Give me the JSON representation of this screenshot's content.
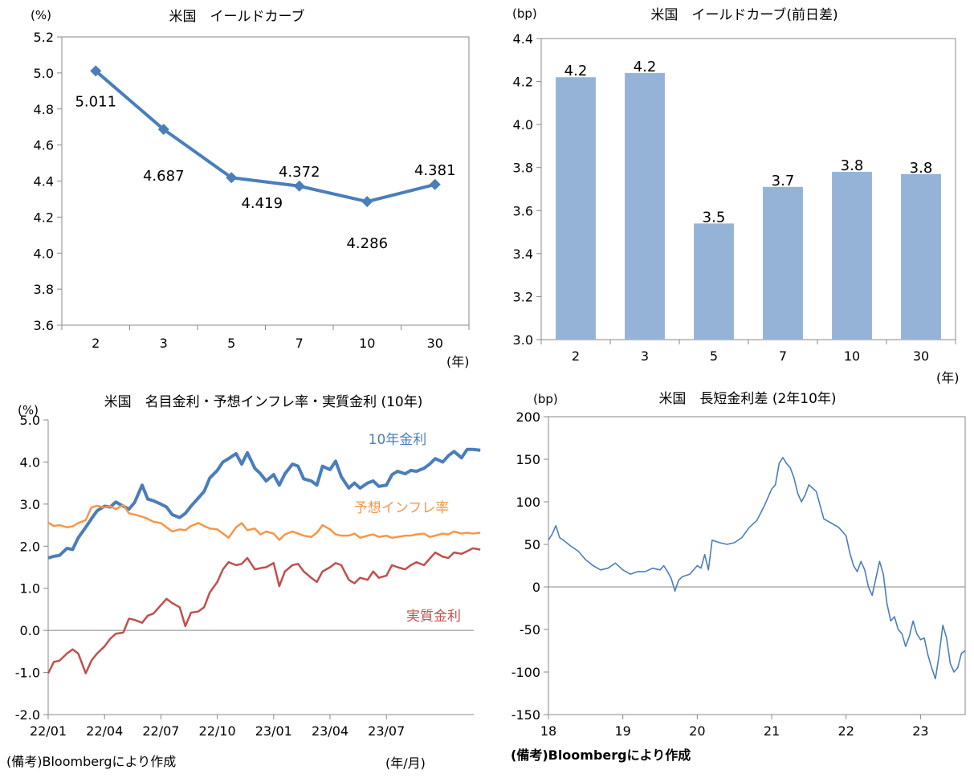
{
  "chart_data": [
    {
      "type": "line",
      "title": "米国　イールドカーブ",
      "ylabel": "(%)",
      "xunit": "(年)",
      "categories": [
        "2",
        "3",
        "5",
        "7",
        "10",
        "30"
      ],
      "values": [
        5.011,
        4.687,
        4.419,
        4.372,
        4.286,
        4.381
      ],
      "data_labels": [
        "5.011",
        "4.687",
        "4.419",
        "4.372",
        "4.286",
        "4.381"
      ],
      "ylim": [
        3.6,
        5.2
      ],
      "yticks": [
        3.6,
        3.8,
        4.0,
        4.2,
        4.4,
        4.6,
        4.8,
        5.0,
        5.2
      ],
      "ytick_labels": [
        "3.6",
        "3.8",
        "4.0",
        "4.2",
        "4.4",
        "4.6",
        "4.8",
        "5.0",
        "5.2"
      ],
      "grid": false,
      "color": "#4a7ebb"
    },
    {
      "type": "bar",
      "title": "米国　イールドカーブ(前日差)",
      "ylabel": "(bp)",
      "xunit": "(年)",
      "categories": [
        "2",
        "3",
        "5",
        "7",
        "10",
        "30"
      ],
      "values": [
        4.22,
        4.24,
        3.54,
        3.71,
        3.78,
        3.77
      ],
      "data_labels": [
        "4.2",
        "4.2",
        "3.5",
        "3.7",
        "3.8",
        "3.8"
      ],
      "ylim": [
        3.0,
        4.4
      ],
      "yticks": [
        3.0,
        3.2,
        3.4,
        3.6,
        3.8,
        4.0,
        4.2,
        4.4
      ],
      "ytick_labels": [
        "3.0",
        "3.2",
        "3.4",
        "3.6",
        "3.8",
        "4.0",
        "4.2",
        "4.4"
      ],
      "grid": false,
      "color": "#95b3d7"
    },
    {
      "type": "line",
      "title": "米国　名目金利・予想インフレ率・実質金利 (10年)",
      "ylabel": "(%)",
      "xunit": "(年/月)",
      "xticks": [
        "22/01",
        "22/04",
        "22/07",
        "22/10",
        "23/01",
        "23/04",
        "23/07"
      ],
      "ylim": [
        -2.0,
        5.0
      ],
      "yticks": [
        -2.0,
        -1.0,
        0.0,
        1.0,
        2.0,
        3.0,
        4.0,
        5.0
      ],
      "ytick_labels": [
        "-2.0",
        "-1.0",
        "0.0",
        "1.0",
        "2.0",
        "3.0",
        "4.0",
        "5.0"
      ],
      "note": "(備考)Bloombergにより作成",
      "series": [
        {
          "name": "10年金利",
          "color": "#4a7ebb",
          "x": [
            0,
            0.3,
            0.6,
            1,
            1.3,
            1.6,
            2,
            2.3,
            2.6,
            3,
            3.3,
            3.6,
            4,
            4.3,
            4.6,
            5,
            5.3,
            5.6,
            6,
            6.3,
            6.6,
            7,
            7.3,
            7.6,
            8,
            8.3,
            8.6,
            9,
            9.3,
            9.6,
            10,
            10.3,
            10.6,
            11,
            11.3,
            11.6,
            12,
            12.3,
            12.6,
            13,
            13.3,
            13.6,
            14,
            14.3,
            14.6,
            15,
            15.3,
            15.6,
            16,
            16.3,
            16.6,
            17,
            17.3,
            17.6,
            18,
            18.3,
            18.6,
            19,
            19.3,
            19.6,
            20,
            20.3,
            20.6,
            21,
            21.3,
            21.6,
            22,
            22.3,
            22.6,
            23
          ],
          "values": [
            1.72,
            1.76,
            1.78,
            1.95,
            1.92,
            2.2,
            2.45,
            2.65,
            2.84,
            2.95,
            2.93,
            3.05,
            2.95,
            2.88,
            3.04,
            3.45,
            3.12,
            3.08,
            3.0,
            2.93,
            2.75,
            2.68,
            2.78,
            2.95,
            3.15,
            3.3,
            3.62,
            3.8,
            4.0,
            4.08,
            4.2,
            3.95,
            4.22,
            3.85,
            3.72,
            3.55,
            3.7,
            3.45,
            3.72,
            3.95,
            3.9,
            3.6,
            3.55,
            3.45,
            3.9,
            3.82,
            4.02,
            3.65,
            3.38,
            3.5,
            3.38,
            3.5,
            3.55,
            3.42,
            3.45,
            3.7,
            3.78,
            3.72,
            3.8,
            3.78,
            3.85,
            3.95,
            4.08,
            4.0,
            4.15,
            4.25,
            4.1,
            4.3,
            4.3,
            4.28
          ]
        },
        {
          "name": "予想インフレ率",
          "color": "#f79646",
          "x": [
            0,
            0.3,
            0.6,
            1,
            1.3,
            1.6,
            2,
            2.3,
            2.6,
            3,
            3.3,
            3.6,
            4,
            4.3,
            4.6,
            5,
            5.3,
            5.6,
            6,
            6.3,
            6.6,
            7,
            7.3,
            7.6,
            8,
            8.3,
            8.6,
            9,
            9.3,
            9.6,
            10,
            10.3,
            10.6,
            11,
            11.3,
            11.6,
            12,
            12.3,
            12.6,
            13,
            13.3,
            13.6,
            14,
            14.3,
            14.6,
            15,
            15.3,
            15.6,
            16,
            16.3,
            16.6,
            17,
            17.3,
            17.6,
            18,
            18.3,
            18.6,
            19,
            19.3,
            19.6,
            20,
            20.3,
            20.6,
            21,
            21.3,
            21.6,
            22,
            22.3,
            22.6,
            23
          ],
          "values": [
            2.56,
            2.48,
            2.5,
            2.45,
            2.47,
            2.55,
            2.62,
            2.92,
            2.96,
            2.92,
            2.95,
            2.88,
            2.98,
            2.78,
            2.75,
            2.7,
            2.65,
            2.58,
            2.55,
            2.45,
            2.35,
            2.4,
            2.38,
            2.48,
            2.55,
            2.48,
            2.42,
            2.4,
            2.3,
            2.2,
            2.45,
            2.55,
            2.38,
            2.42,
            2.28,
            2.35,
            2.3,
            2.15,
            2.28,
            2.35,
            2.3,
            2.25,
            2.22,
            2.32,
            2.5,
            2.4,
            2.28,
            2.25,
            2.25,
            2.3,
            2.2,
            2.25,
            2.28,
            2.22,
            2.25,
            2.2,
            2.22,
            2.25,
            2.25,
            2.28,
            2.3,
            2.22,
            2.25,
            2.3,
            2.28,
            2.35,
            2.3,
            2.32,
            2.3,
            2.32
          ]
        },
        {
          "name": "実質金利",
          "color": "#c0504d",
          "x": [
            0,
            0.3,
            0.6,
            1,
            1.3,
            1.6,
            2,
            2.3,
            2.6,
            3,
            3.3,
            3.6,
            4,
            4.3,
            4.6,
            5,
            5.3,
            5.6,
            6,
            6.3,
            6.6,
            7,
            7.3,
            7.6,
            8,
            8.3,
            8.6,
            9,
            9.3,
            9.6,
            10,
            10.3,
            10.6,
            11,
            11.3,
            11.6,
            12,
            12.3,
            12.6,
            13,
            13.3,
            13.6,
            14,
            14.3,
            14.6,
            15,
            15.3,
            15.6,
            16,
            16.3,
            16.6,
            17,
            17.3,
            17.6,
            18,
            18.3,
            18.6,
            19,
            19.3,
            19.6,
            20,
            20.3,
            20.6,
            21,
            21.3,
            21.6,
            22,
            22.3,
            22.6,
            23
          ],
          "values": [
            -1.02,
            -0.75,
            -0.72,
            -0.55,
            -0.45,
            -0.55,
            -1.02,
            -0.72,
            -0.55,
            -0.38,
            -0.2,
            -0.08,
            -0.05,
            0.28,
            0.25,
            0.18,
            0.35,
            0.4,
            0.6,
            0.75,
            0.65,
            0.55,
            0.1,
            0.42,
            0.45,
            0.55,
            0.9,
            1.15,
            1.45,
            1.62,
            1.55,
            1.58,
            1.72,
            1.45,
            1.48,
            1.5,
            1.6,
            1.05,
            1.4,
            1.55,
            1.58,
            1.4,
            1.25,
            1.15,
            1.4,
            1.5,
            1.6,
            1.55,
            1.2,
            1.12,
            1.25,
            1.2,
            1.4,
            1.25,
            1.3,
            1.55,
            1.5,
            1.45,
            1.55,
            1.62,
            1.55,
            1.7,
            1.85,
            1.75,
            1.72,
            1.85,
            1.82,
            1.88,
            1.95,
            1.92
          ]
        }
      ]
    },
    {
      "type": "line",
      "title": "米国　長短金利差 (2年10年)",
      "ylabel": "(bp)",
      "xticks": [
        "18",
        "19",
        "20",
        "21",
        "22",
        "23"
      ],
      "xlim": [
        18,
        23.6
      ],
      "ylim": [
        -150,
        200
      ],
      "yticks": [
        -150,
        -100,
        -50,
        0,
        50,
        100,
        150,
        200
      ],
      "ytick_labels": [
        "-150",
        "-100",
        "-50",
        "0",
        "50",
        "100",
        "150",
        "200"
      ],
      "note": "(備考)Bloombergにより作成",
      "series": [
        {
          "color": "#4a7ebb",
          "x": [
            18.0,
            18.05,
            18.1,
            18.15,
            18.2,
            18.3,
            18.4,
            18.5,
            18.6,
            18.7,
            18.8,
            18.9,
            19.0,
            19.1,
            19.2,
            19.3,
            19.4,
            19.5,
            19.55,
            19.6,
            19.65,
            19.7,
            19.75,
            19.8,
            19.9,
            20.0,
            20.05,
            20.1,
            20.15,
            20.2,
            20.3,
            20.4,
            20.5,
            20.6,
            20.7,
            20.8,
            20.9,
            21.0,
            21.05,
            21.1,
            21.15,
            21.2,
            21.25,
            21.3,
            21.35,
            21.4,
            21.45,
            21.5,
            21.6,
            21.7,
            21.8,
            21.9,
            22.0,
            22.05,
            22.1,
            22.15,
            22.2,
            22.25,
            22.3,
            22.35,
            22.4,
            22.45,
            22.5,
            22.55,
            22.6,
            22.65,
            22.7,
            22.75,
            22.8,
            22.85,
            22.9,
            22.95,
            23.0,
            23.05,
            23.1,
            23.15,
            23.2,
            23.25,
            23.3,
            23.35,
            23.4,
            23.45,
            23.5,
            23.55,
            23.6
          ],
          "values": [
            55,
            62,
            72,
            58,
            55,
            48,
            42,
            32,
            25,
            20,
            22,
            28,
            20,
            15,
            18,
            18,
            22,
            20,
            25,
            18,
            10,
            -5,
            8,
            12,
            15,
            25,
            22,
            38,
            20,
            55,
            52,
            50,
            52,
            58,
            70,
            78,
            95,
            115,
            120,
            145,
            152,
            145,
            140,
            128,
            110,
            100,
            108,
            120,
            112,
            80,
            75,
            70,
            60,
            40,
            25,
            18,
            30,
            20,
            0,
            -10,
            10,
            30,
            15,
            -20,
            -40,
            -35,
            -50,
            -55,
            -70,
            -58,
            -40,
            -55,
            -62,
            -60,
            -80,
            -95,
            -108,
            -80,
            -45,
            -60,
            -90,
            -100,
            -95,
            -78,
            -75
          ]
        }
      ]
    }
  ]
}
